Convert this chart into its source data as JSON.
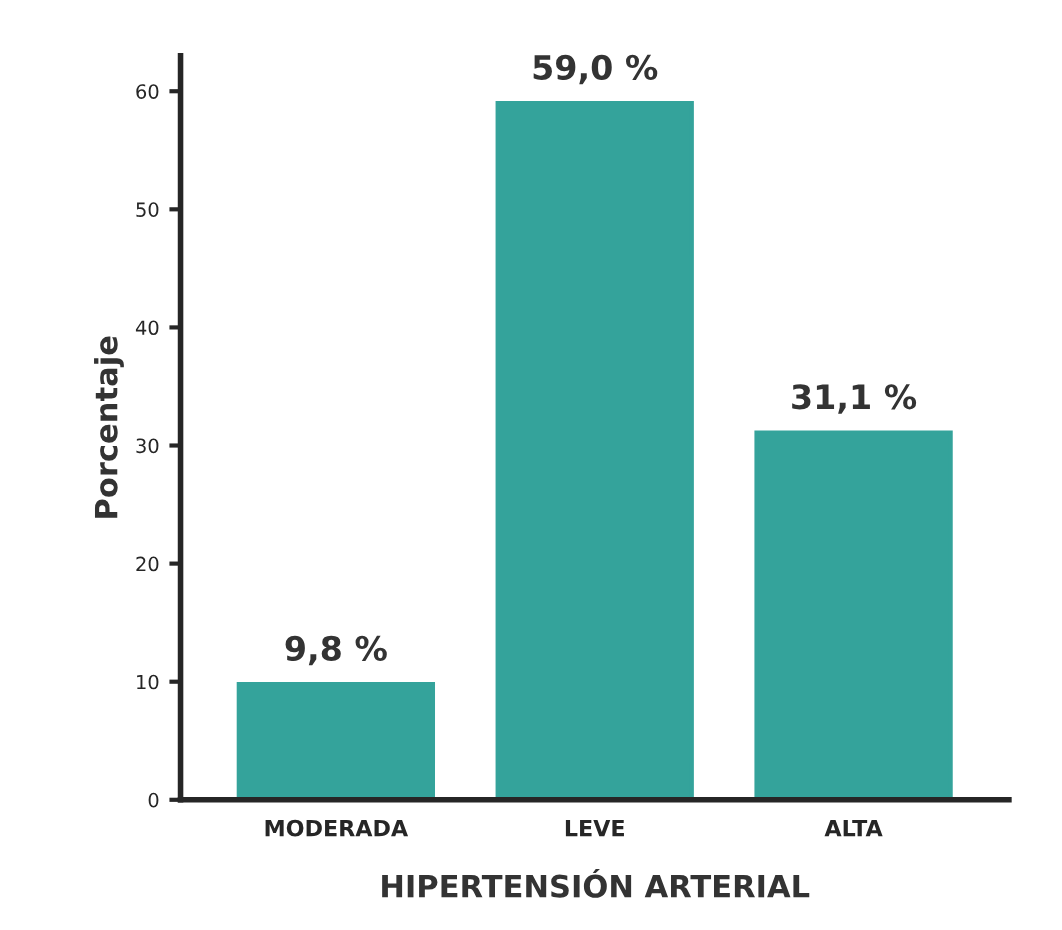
{
  "chart_data": {
    "type": "bar",
    "xlabel": "HIPERTENSIÓN ARTERIAL",
    "ylabel": "Porcentaje",
    "categories": [
      "MODERADA",
      "LEVE",
      "ALTA"
    ],
    "values": [
      9.8,
      59.0,
      31.1
    ],
    "value_labels": [
      "9,8 %",
      "59,0 %",
      "31,1 %"
    ],
    "color": "#34a39b",
    "ylim": [
      0,
      63
    ],
    "yticks": [
      0,
      10,
      20,
      30,
      40,
      50,
      60
    ],
    "grid": false,
    "legend": false
  }
}
